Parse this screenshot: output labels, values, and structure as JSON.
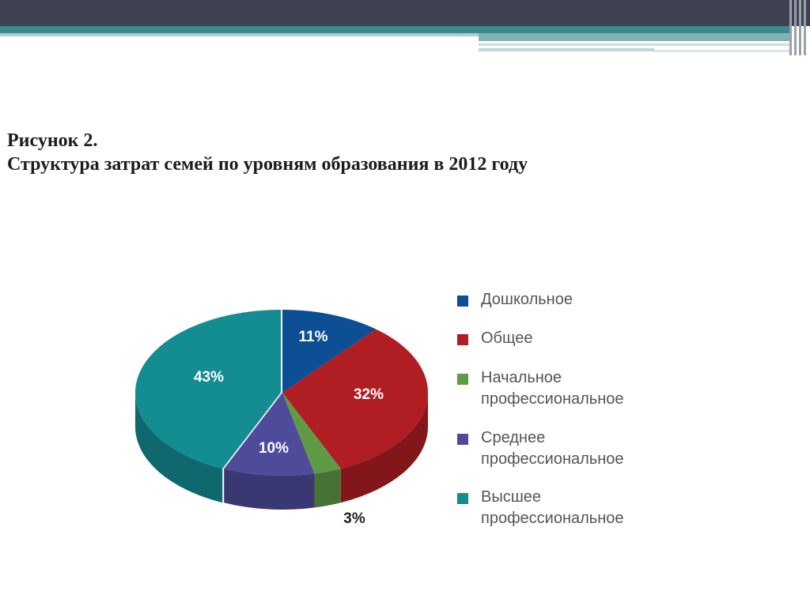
{
  "figure": {
    "number_line": "Рисунок 2.",
    "title_line": "Структура затрат семей по уровням образования в 2012 году"
  },
  "theme": {
    "header_dark": "#3f4253",
    "header_teal": "#3d8a8c"
  },
  "chart_data": {
    "type": "pie",
    "style": "3d-exploded-tilted",
    "start_angle_deg": 0,
    "direction": "clockwise",
    "legend_placement": "right",
    "slices": [
      {
        "label": "Дошкольное",
        "value": 11,
        "value_label": "11%",
        "color": "#0d4f94",
        "side_color": "#0a3a6e"
      },
      {
        "label": "Общее",
        "value": 32,
        "value_label": "32%",
        "color": "#b01e23",
        "side_color": "#82161a"
      },
      {
        "label": "Начальное профессиональное",
        "value": 3,
        "value_label": "3%",
        "color": "#5f9a45",
        "side_color": "#467334"
      },
      {
        "label": "Среднее профессиональное",
        "value": 10,
        "value_label": "10%",
        "color": "#4e4c9a",
        "side_color": "#3a3873"
      },
      {
        "label": "Высшее профессиональное",
        "value": 43,
        "value_label": "43%",
        "color": "#138c92",
        "side_color": "#0e686d"
      }
    ],
    "legend": [
      {
        "label": "Дошкольное",
        "color": "#0d4f94"
      },
      {
        "label": "Общее",
        "color": "#b01e23"
      },
      {
        "label": "Начальное\nпрофессиональное",
        "color": "#5f9a45"
      },
      {
        "label": "Среднее\nпрофессиональное",
        "color": "#4e4c9a"
      },
      {
        "label": "Высшее\nпрофессиональное",
        "color": "#138c92"
      }
    ]
  }
}
